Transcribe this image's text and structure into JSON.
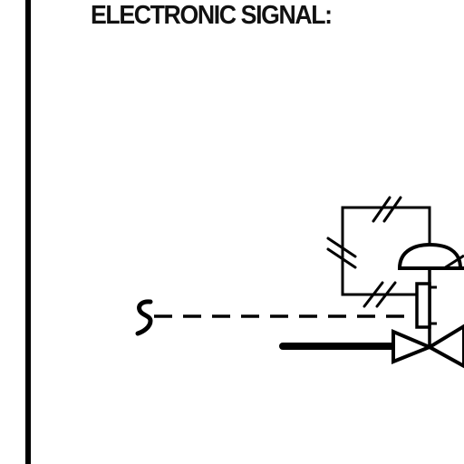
{
  "heading": "ELECTRONIC SIGNAL:",
  "colors": {
    "ink": "#000000",
    "background": "#ffffff"
  },
  "symbols": {
    "signal_source": "electronic-signal-source-squiggle",
    "signal_line": "dashed-electronic-signal-line",
    "feedback_loop": "rectangular-loop-with-double-hash-marks",
    "actuator": "diaphragm-actuator-dome",
    "positioner": "positioner-box",
    "valve": "bowtie-control-valve",
    "process_line": "heavy-process-pipe-line"
  }
}
